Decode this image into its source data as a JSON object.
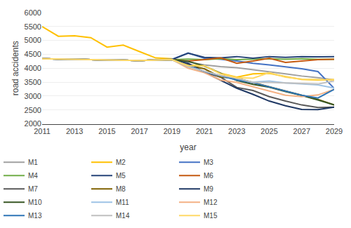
{
  "chart_data": {
    "type": "line",
    "xlabel": "year",
    "ylabel": "road accidents",
    "xlim": [
      2011,
      2029
    ],
    "ylim": [
      2000,
      6000
    ],
    "xticks": [
      2011,
      2013,
      2015,
      2017,
      2019,
      2021,
      2023,
      2025,
      2027,
      2029
    ],
    "yticks": [
      2000,
      2500,
      3000,
      3500,
      4000,
      4500,
      5000,
      5500,
      6000
    ],
    "grid": "y",
    "legend": "lower left",
    "series": [
      {
        "name": "M1",
        "color": "#a0a0a0",
        "x": [
          2011,
          2013,
          2015,
          2017,
          2019,
          2019,
          2020,
          2021,
          2022,
          2023,
          2024,
          2025,
          2026,
          2027,
          2028,
          2029
        ],
        "values": [
          4340,
          4320,
          4300,
          4280,
          4310,
          4310,
          4230,
          4120,
          4060,
          4020,
          3950,
          3870,
          3800,
          3720,
          3660,
          3580
        ]
      },
      {
        "name": "M2",
        "color": "#ffc000",
        "x": [
          2011,
          2012,
          2013,
          2014,
          2015,
          2016,
          2017,
          2018,
          2019,
          2019,
          2020,
          2021,
          2022,
          2023,
          2024,
          2025,
          2026,
          2027,
          2028,
          2029
        ],
        "values": [
          5500,
          5150,
          5170,
          5100,
          4760,
          4830,
          4600,
          4370,
          4340,
          4340,
          4120,
          4080,
          3820,
          3680,
          3800,
          3820,
          3700,
          3600,
          3580,
          3590
        ]
      },
      {
        "name": "M3",
        "color": "#4472c4",
        "x": [
          2011,
          2013,
          2015,
          2017,
          2019,
          2019,
          2020,
          2021,
          2022,
          2023,
          2024,
          2025,
          2026,
          2027,
          2028,
          2029
        ],
        "values": [
          4340,
          4320,
          4300,
          4280,
          4320,
          4320,
          4550,
          4360,
          4320,
          4260,
          4180,
          4120,
          4050,
          3980,
          3880,
          3280
        ]
      },
      {
        "name": "M4",
        "color": "#70ad47",
        "x": [
          2011,
          2013,
          2015,
          2017,
          2019,
          2019,
          2020,
          2021,
          2022,
          2023,
          2024,
          2025,
          2026,
          2027,
          2028,
          2029
        ],
        "values": [
          4340,
          4320,
          4300,
          4280,
          4310,
          4310,
          4330,
          4310,
          4340,
          4310,
          4330,
          4340,
          4320,
          4340,
          4320,
          4320
        ]
      },
      {
        "name": "M5",
        "color": "#264478",
        "x": [
          2011,
          2013,
          2015,
          2017,
          2019,
          2019,
          2020,
          2021,
          2022,
          2023,
          2024,
          2025,
          2026,
          2027,
          2028,
          2029
        ],
        "values": [
          4340,
          4320,
          4300,
          4280,
          4310,
          4310,
          4540,
          4390,
          4370,
          4420,
          4360,
          4420,
          4390,
          4420,
          4410,
          4420
        ]
      },
      {
        "name": "M6",
        "color": "#c55a11",
        "x": [
          2011,
          2013,
          2015,
          2017,
          2019,
          2019,
          2020,
          2021,
          2022,
          2023,
          2024,
          2025,
          2026,
          2027,
          2028,
          2029
        ],
        "values": [
          4340,
          4320,
          4300,
          4280,
          4310,
          4310,
          4260,
          4310,
          4370,
          4180,
          4260,
          4360,
          4210,
          4260,
          4310,
          4320
        ]
      },
      {
        "name": "M7",
        "color": "#595959",
        "x": [
          2011,
          2013,
          2015,
          2017,
          2019,
          2019,
          2020,
          2021,
          2022,
          2023,
          2024,
          2025,
          2026,
          2027,
          2028,
          2029
        ],
        "values": [
          4340,
          4320,
          4300,
          4280,
          4310,
          4310,
          4150,
          3860,
          3680,
          3310,
          3200,
          2980,
          2820,
          2680,
          2590,
          2600
        ]
      },
      {
        "name": "M8",
        "color": "#7f6000",
        "x": [
          2011,
          2013,
          2015,
          2017,
          2019,
          2019,
          2020,
          2021,
          2022,
          2023,
          2024,
          2025,
          2026,
          2027,
          2028,
          2029
        ],
        "values": [
          4340,
          4320,
          4300,
          4280,
          4310,
          4310,
          4100,
          3980,
          3680,
          3640,
          3480,
          3330,
          3180,
          3030,
          2880,
          2680
        ]
      },
      {
        "name": "M9",
        "color": "#1f3864",
        "x": [
          2011,
          2013,
          2015,
          2017,
          2019,
          2019,
          2020,
          2021,
          2022,
          2023,
          2024,
          2025,
          2026,
          2027,
          2028,
          2029
        ],
        "values": [
          4340,
          4320,
          4300,
          4280,
          4310,
          4310,
          4180,
          3860,
          3580,
          3280,
          3060,
          2820,
          2650,
          2520,
          2510,
          2600
        ]
      },
      {
        "name": "M10",
        "color": "#375623",
        "x": [
          2011,
          2013,
          2015,
          2017,
          2019,
          2019,
          2020,
          2021,
          2022,
          2023,
          2024,
          2025,
          2026,
          2027,
          2028,
          2029
        ],
        "values": [
          4340,
          4320,
          4300,
          4280,
          4310,
          4310,
          4250,
          4080,
          3820,
          3560,
          3420,
          3320,
          3160,
          3020,
          2860,
          2680
        ]
      },
      {
        "name": "M11",
        "color": "#9dc3e6",
        "x": [
          2011,
          2013,
          2015,
          2017,
          2019,
          2019,
          2020,
          2021,
          2022,
          2023,
          2024,
          2025,
          2026,
          2027,
          2028,
          2029
        ],
        "values": [
          4340,
          4320,
          4300,
          4280,
          4310,
          4310,
          4100,
          3880,
          3730,
          3580,
          3500,
          3540,
          3470,
          3440,
          3400,
          3290
        ]
      },
      {
        "name": "M12",
        "color": "#f4b183",
        "x": [
          2011,
          2013,
          2015,
          2017,
          2019,
          2019,
          2020,
          2021,
          2022,
          2023,
          2024,
          2025,
          2026,
          2027,
          2028,
          2029
        ],
        "values": [
          4340,
          4320,
          4300,
          4280,
          4310,
          4310,
          4000,
          3840,
          3580,
          3490,
          3330,
          3180,
          3030,
          2980,
          3040,
          3240
        ]
      },
      {
        "name": "M13",
        "color": "#2e75b6",
        "x": [
          2011,
          2013,
          2015,
          2017,
          2019,
          2019,
          2020,
          2021,
          2022,
          2023,
          2024,
          2025,
          2026,
          2027,
          2028,
          2029
        ],
        "values": [
          4340,
          4320,
          4300,
          4280,
          4310,
          4310,
          4080,
          3880,
          3730,
          3580,
          3480,
          3330,
          3180,
          3030,
          2930,
          3240
        ]
      },
      {
        "name": "M14",
        "color": "#bfbfbf",
        "x": [
          2011,
          2013,
          2015,
          2017,
          2019,
          2019,
          2020,
          2021,
          2022,
          2023,
          2024,
          2025,
          2026,
          2027,
          2028,
          2029
        ],
        "values": [
          4340,
          4320,
          4300,
          4280,
          4310,
          4310,
          4050,
          3890,
          3740,
          3640,
          3490,
          3490,
          3470,
          3440,
          3430,
          3550
        ]
      },
      {
        "name": "M15",
        "color": "#ffd966",
        "x": [
          2011,
          2013,
          2015,
          2017,
          2019,
          2019,
          2020,
          2021,
          2022,
          2023,
          2024,
          2025,
          2026,
          2027,
          2028,
          2029
        ],
        "values": [
          4340,
          4320,
          4300,
          4280,
          4310,
          4310,
          4090,
          4090,
          3800,
          3660,
          3640,
          3840,
          3680,
          3610,
          3590,
          3580
        ]
      }
    ]
  }
}
